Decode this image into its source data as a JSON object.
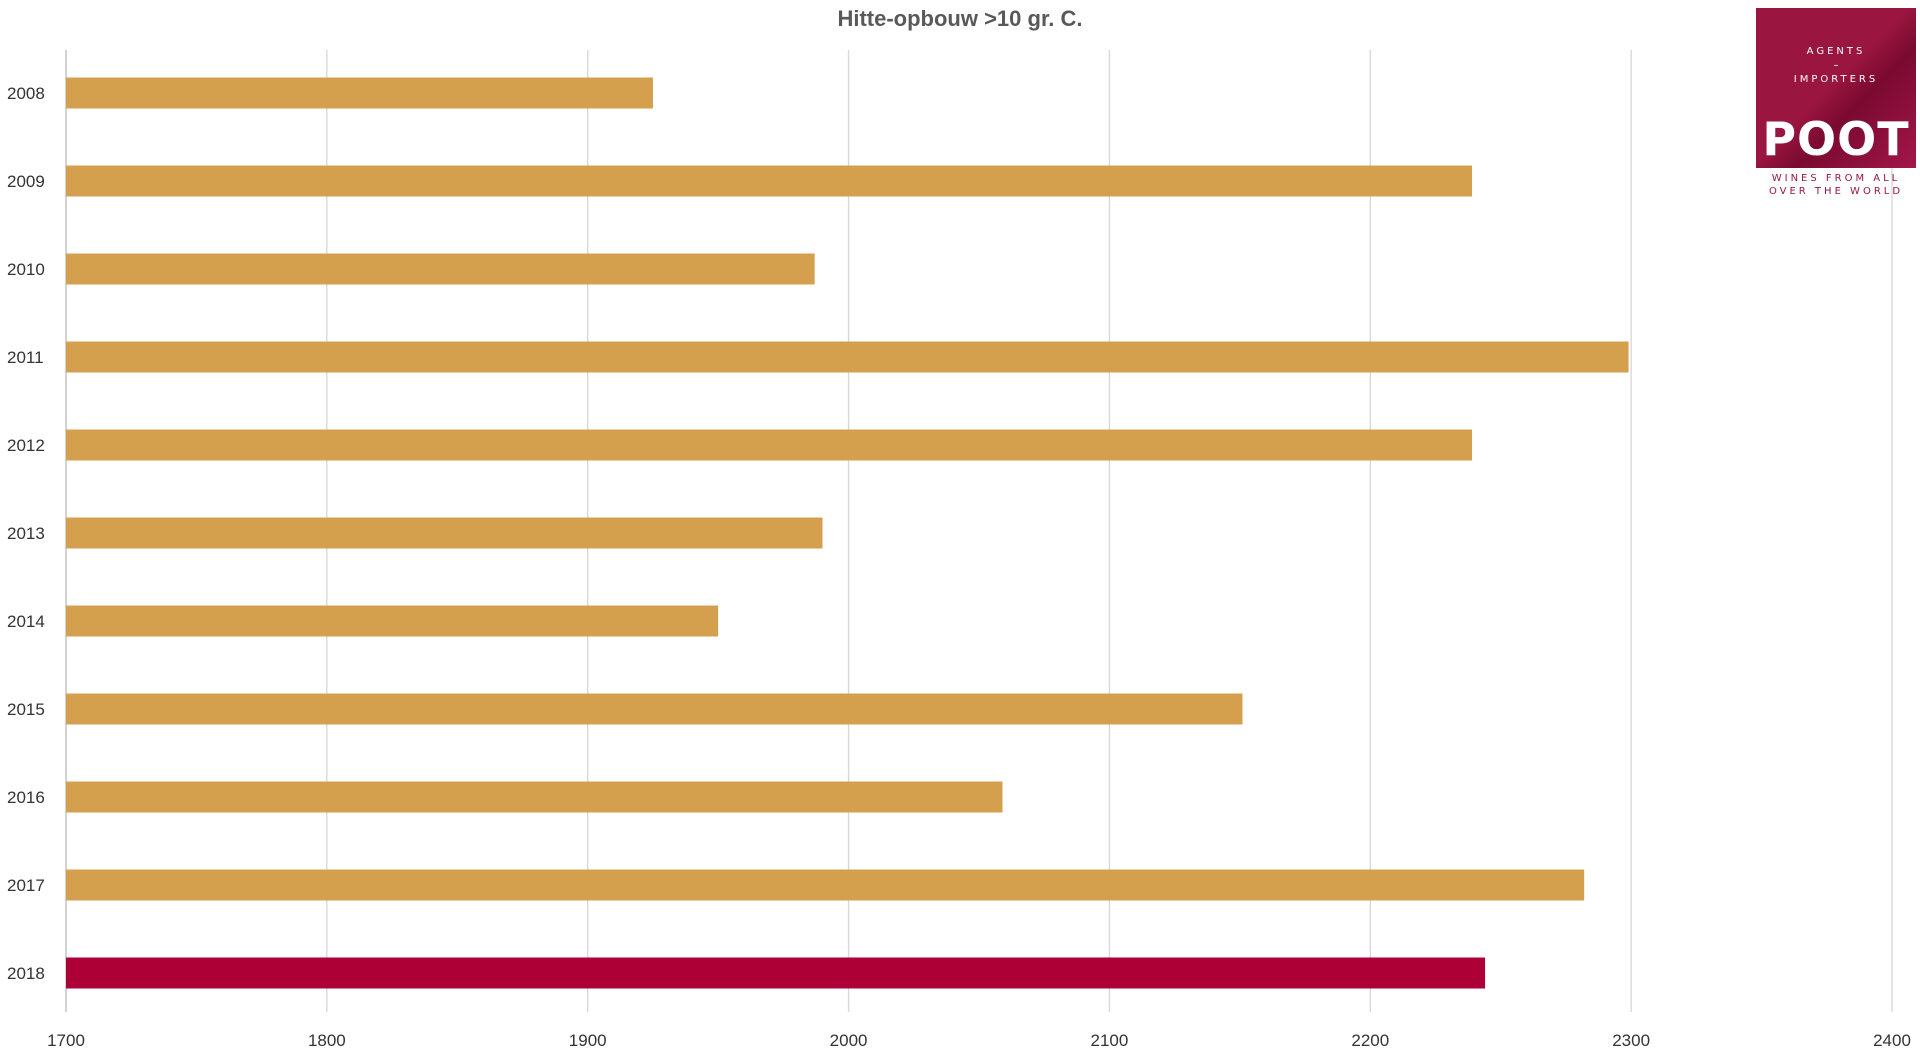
{
  "chart_data": {
    "type": "bar",
    "orientation": "horizontal",
    "title": "Hitte-opbouw >10 gr. C.",
    "categories": [
      "2008",
      "2009",
      "2010",
      "2011",
      "2012",
      "2013",
      "2014",
      "2015",
      "2016",
      "2017",
      "2018"
    ],
    "values": [
      1925,
      2239,
      1987,
      2299,
      2239,
      1990,
      1950,
      2151,
      2059,
      2282,
      2244
    ],
    "xlim": [
      1700,
      2400
    ],
    "xticks": [
      "1700",
      "1800",
      "1900",
      "2000",
      "2100",
      "2200",
      "2300",
      "2400"
    ],
    "grid": true,
    "colors": {
      "default": "#d5a04e",
      "highlight": "#ac0036",
      "highlight_category": "2018"
    }
  },
  "logo": {
    "line1": "AGENTS",
    "line2": "–",
    "line3": "IMPORTERS",
    "brand": "POOT",
    "tagline1": "WINES FROM ALL",
    "tagline2": "OVER THE WORLD"
  }
}
